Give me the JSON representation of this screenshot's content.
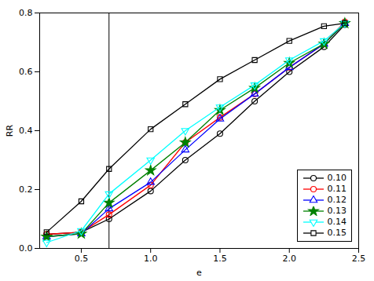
{
  "chart_data": {
    "type": "line",
    "xlabel": "e",
    "ylabel": "RR",
    "xlim": [
      0.2,
      2.5
    ],
    "ylim": [
      0.0,
      0.8
    ],
    "xticks": [
      0.5,
      {
        "value": 1.0,
        "label": "1.0"
      },
      1.5,
      {
        "value": 2.0,
        "label": "2.0"
      },
      2.5
    ],
    "yticks": [
      {
        "value": 0.0,
        "label": "0.0"
      },
      0.2,
      0.4,
      0.6,
      0.8
    ],
    "vline_x": 0.7,
    "grid": false,
    "legend": "lower right",
    "x": [
      0.25,
      0.5,
      0.7,
      1.0,
      1.25,
      1.5,
      1.75,
      2.0,
      2.25,
      2.4
    ],
    "series": [
      {
        "name": "0.10",
        "color": "black",
        "marker": "circle",
        "values": [
          0.048,
          0.055,
          0.1,
          0.195,
          0.3,
          0.39,
          0.5,
          0.6,
          0.685,
          0.76
        ]
      },
      {
        "name": "0.11",
        "color": "red",
        "marker": "circle",
        "values": [
          0.048,
          0.055,
          0.115,
          0.215,
          0.36,
          0.445,
          0.525,
          0.615,
          0.695,
          0.77
        ]
      },
      {
        "name": "0.12",
        "color": "blue",
        "marker": "triangle",
        "values": [
          0.04,
          0.05,
          0.135,
          0.225,
          0.335,
          0.44,
          0.525,
          0.615,
          0.695,
          0.765
        ]
      },
      {
        "name": "0.13",
        "color": "green",
        "marker": "star",
        "values": [
          0.04,
          0.05,
          0.155,
          0.265,
          0.36,
          0.47,
          0.545,
          0.63,
          0.695,
          0.765
        ]
      },
      {
        "name": "0.14",
        "color": "cyan",
        "marker": "triangle-down",
        "values": [
          0.02,
          0.06,
          0.185,
          0.3,
          0.4,
          0.48,
          0.555,
          0.64,
          0.705,
          0.765
        ]
      },
      {
        "name": "0.15",
        "color": "black",
        "marker": "square",
        "values": [
          0.055,
          0.16,
          0.27,
          0.405,
          0.49,
          0.575,
          0.64,
          0.705,
          0.755,
          0.765
        ]
      }
    ]
  }
}
